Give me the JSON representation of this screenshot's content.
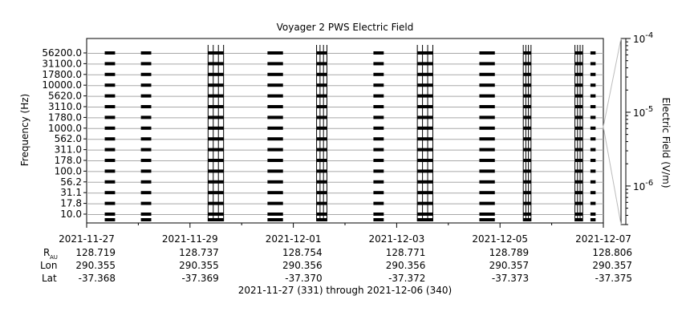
{
  "chart_data": {
    "type": "heatmap",
    "title": "Voyager 2 PWS Electric Field",
    "ylabel": "Frequency (Hz)",
    "colorbar": {
      "label": "Electric Field (V/m)",
      "scale": "log",
      "range": [
        3e-07,
        0.0001
      ],
      "ticks": [
        {
          "base": "10",
          "exp": "-4",
          "value": 0.0001
        },
        {
          "base": "10",
          "exp": "-5",
          "value": 1e-05
        },
        {
          "base": "10",
          "exp": "-6",
          "value": 1e-06
        }
      ]
    },
    "y_ticks": [
      "56200.0",
      "31100.0",
      "17800.0",
      "10000.0",
      "5620.0",
      "3110.0",
      "1780.0",
      "1000.0",
      "562.0",
      "311.0",
      "178.0",
      "100.0",
      "56.2",
      "31.1",
      "17.8",
      "10.0"
    ],
    "x_ticks": [
      {
        "label": "2021-11-27",
        "day": 0,
        "rau": "128.719",
        "lon": "290.355",
        "lat": "-37.368"
      },
      {
        "label": "2021-11-29",
        "day": 2,
        "rau": "128.737",
        "lon": "290.355",
        "lat": "-37.369"
      },
      {
        "label": "2021-12-01",
        "day": 4,
        "rau": "128.754",
        "lon": "290.356",
        "lat": "-37.370"
      },
      {
        "label": "2021-12-03",
        "day": 6,
        "rau": "128.771",
        "lon": "290.356",
        "lat": "-37.372"
      },
      {
        "label": "2021-12-05",
        "day": 8,
        "rau": "128.789",
        "lon": "290.357",
        "lat": "-37.373"
      },
      {
        "label": "2021-12-07",
        "day": 10,
        "rau": "128.806",
        "lon": "290.357",
        "lat": "-37.375"
      }
    ],
    "x_range_days": [
      0,
      10
    ],
    "ephemeris_labels": {
      "rau": "R",
      "rau_sub": "AU",
      "lon": "Lon",
      "lat": "Lat"
    },
    "footer": "2021-11-27 (331) through 2021-12-06 (340)",
    "data_blocks": [
      {
        "start_day": 0.35,
        "end_day": 0.55,
        "type": "regular"
      },
      {
        "start_day": 1.05,
        "end_day": 1.25,
        "type": "regular"
      },
      {
        "start_day": 2.35,
        "end_day": 2.65,
        "type": "dense"
      },
      {
        "start_day": 3.5,
        "end_day": 3.8,
        "type": "regular"
      },
      {
        "start_day": 4.45,
        "end_day": 4.65,
        "type": "dense"
      },
      {
        "start_day": 5.55,
        "end_day": 5.75,
        "type": "regular"
      },
      {
        "start_day": 6.4,
        "end_day": 6.7,
        "type": "dense"
      },
      {
        "start_day": 7.6,
        "end_day": 7.9,
        "type": "regular"
      },
      {
        "start_day": 8.45,
        "end_day": 8.6,
        "type": "dense"
      },
      {
        "start_day": 9.45,
        "end_day": 9.6,
        "type": "dense"
      },
      {
        "start_day": 9.75,
        "end_day": 9.85,
        "type": "regular"
      }
    ]
  }
}
